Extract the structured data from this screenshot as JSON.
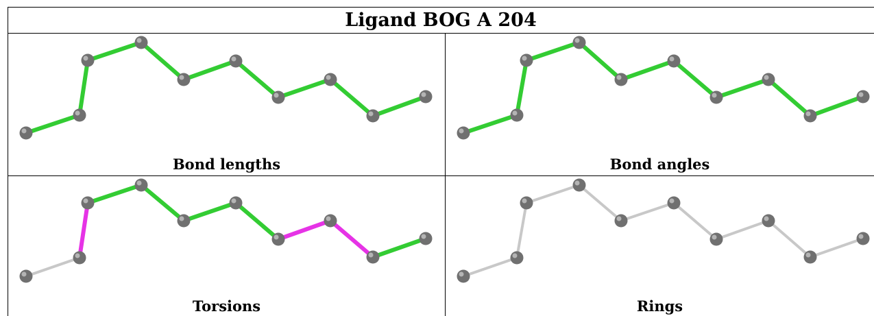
{
  "title": "Ligand BOG A 204",
  "panels": [
    {
      "caption": "Bond lengths",
      "bond_colors": [
        "green",
        "green",
        "green",
        "green",
        "green",
        "green",
        "green",
        "green",
        "green",
        "green",
        "green"
      ]
    },
    {
      "caption": "Bond angles",
      "bond_colors": [
        "green",
        "green",
        "green",
        "green",
        "green",
        "green",
        "green",
        "green",
        "green",
        "green",
        "green"
      ]
    },
    {
      "caption": "Torsions",
      "bond_colors": [
        "grey",
        "magenta",
        "green",
        "green",
        "green",
        "green",
        "magenta",
        "magenta",
        "green",
        "grey"
      ]
    },
    {
      "caption": "Rings",
      "bond_colors": [
        "grey",
        "grey",
        "grey",
        "grey",
        "grey",
        "grey",
        "grey",
        "grey",
        "grey",
        "grey"
      ]
    }
  ],
  "colors": {
    "green": "#33cc33",
    "magenta": "#e633e6",
    "grey": "#c8c8c8",
    "atom": "#707070"
  }
}
